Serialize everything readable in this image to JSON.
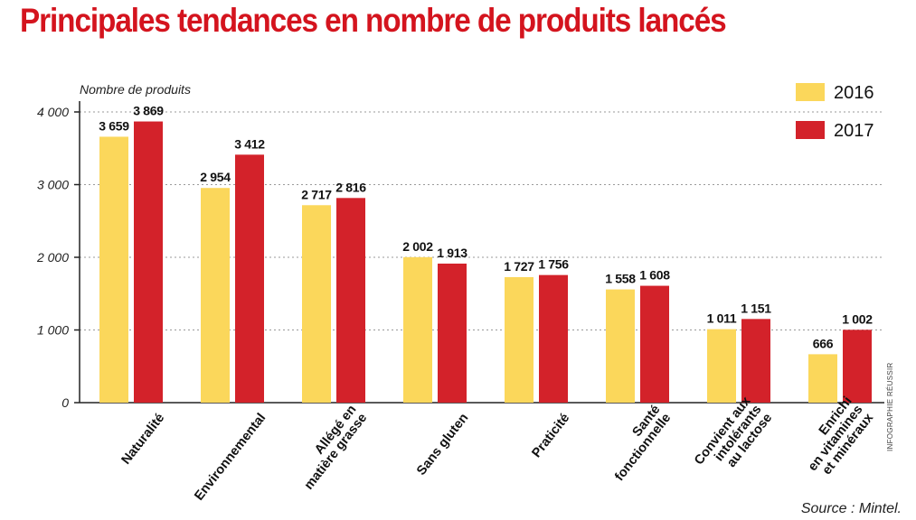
{
  "title": "Principales tendances en nombre de produits lancés",
  "credit": "INFOGRAPHIE RÉUSSIR",
  "source": "Source : Mintel.",
  "colors": {
    "title": "#d4141e",
    "series_2016": "#fbd75b",
    "series_2017": "#d3222a",
    "grid": "#9a9a9a",
    "axis": "#222222"
  },
  "chart_data": {
    "type": "bar",
    "ylabel": "Nombre de produits",
    "ylim": [
      0,
      4000
    ],
    "yticks": [
      0,
      1000,
      2000,
      3000,
      4000
    ],
    "ytick_labels": [
      "0",
      "1 000",
      "2 000",
      "3 000",
      "4 000"
    ],
    "grid": true,
    "legend_position": "top-right",
    "categories": [
      "Naturalité",
      "Environnemental",
      "Allégé en matière grasse",
      "Sans gluten",
      "Praticité",
      "Santé fonctionnelle",
      "Convient aux intolérants au lactose",
      "Enrichi en vitamines et minéraux"
    ],
    "category_lines": [
      [
        "Naturalité"
      ],
      [
        "Environnemental"
      ],
      [
        "Allégé en",
        "matière grasse"
      ],
      [
        "Sans gluten"
      ],
      [
        "Praticité"
      ],
      [
        "Santé",
        "fonctionnelle"
      ],
      [
        "Convient aux",
        "intolérants",
        "au lactose"
      ],
      [
        "Enrichi",
        "en vitamines",
        "et minéraux"
      ]
    ],
    "series": [
      {
        "name": "2016",
        "values": [
          3659,
          2954,
          2717,
          2002,
          1727,
          1558,
          1011,
          666
        ],
        "labels": [
          "3 659",
          "2 954",
          "2 717",
          "2 002",
          "1 727",
          "1 558",
          "1 011",
          "666"
        ]
      },
      {
        "name": "2017",
        "values": [
          3869,
          3412,
          2816,
          1913,
          1756,
          1608,
          1151,
          1002
        ],
        "labels": [
          "3 869",
          "3 412",
          "2 816",
          "1 913",
          "1 756",
          "1 608",
          "1 151",
          "1 002"
        ]
      }
    ]
  }
}
